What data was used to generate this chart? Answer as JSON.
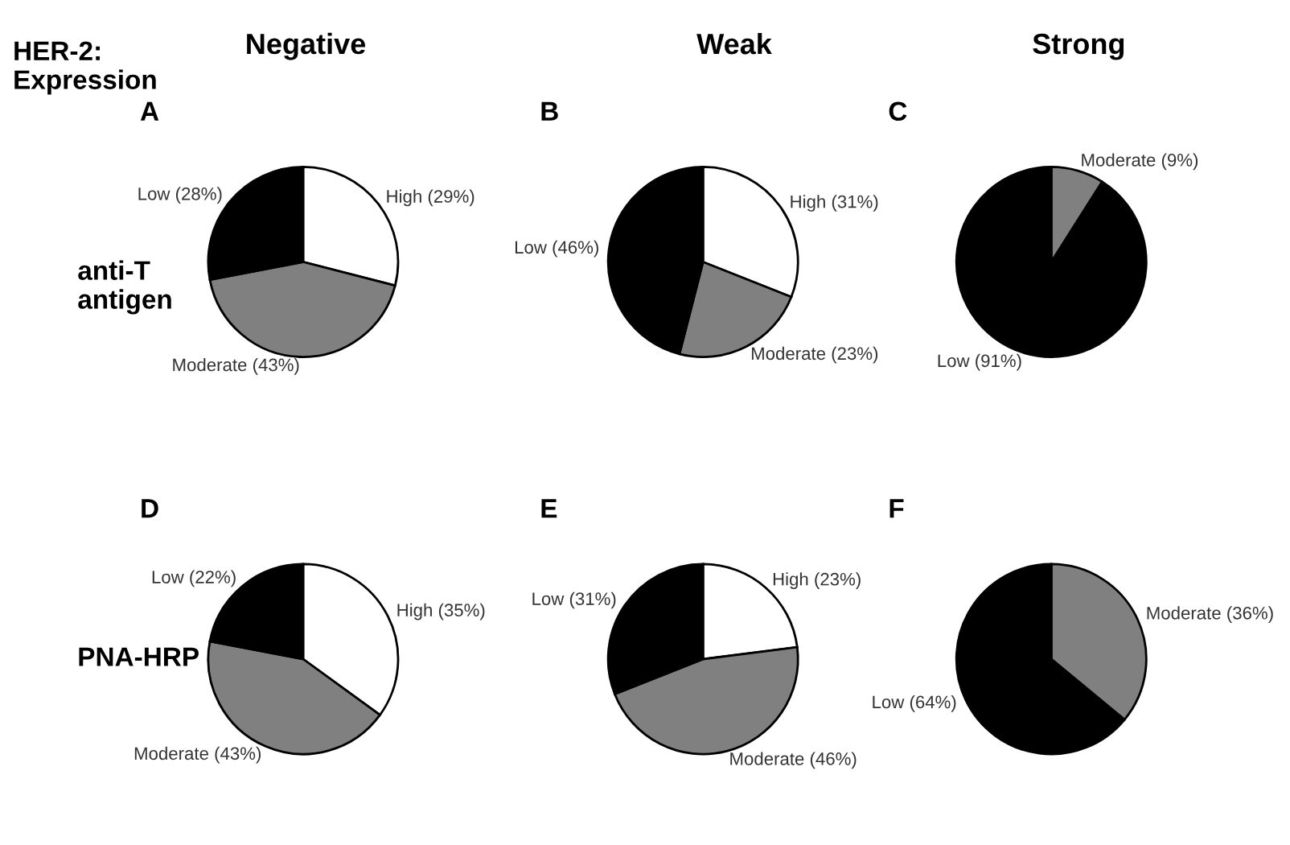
{
  "chart_data": [
    {
      "type": "pie",
      "title": "A",
      "categories": [
        "High (29%)",
        "Moderate (43%)",
        "Low (28%)"
      ],
      "values": [
        29,
        43,
        28
      ],
      "colors": [
        "#ffffff",
        "#808080",
        "#000000"
      ],
      "annotations": [
        "HER-2:\nExpression",
        "Negative",
        "anti-T\nantigen"
      ]
    },
    {
      "type": "pie",
      "title": "B",
      "categories": [
        "High (31%)",
        "Moderate (23%)",
        "Low (46%)"
      ],
      "values": [
        31,
        23,
        46
      ],
      "colors": [
        "#ffffff",
        "#808080",
        "#000000"
      ],
      "annotations": [
        "Weak"
      ]
    },
    {
      "type": "pie",
      "title": "C",
      "categories": [
        "Moderate (9%)",
        "Low (91%)"
      ],
      "values": [
        9,
        91
      ],
      "colors": [
        "#808080",
        "#000000"
      ],
      "annotations": [
        "Strong"
      ]
    },
    {
      "type": "pie",
      "title": "D",
      "categories": [
        "High (35%)",
        "Moderate (43%)",
        "Low (22%)"
      ],
      "values": [
        35,
        43,
        22
      ],
      "colors": [
        "#ffffff",
        "#808080",
        "#000000"
      ],
      "annotations": [
        "PNA-HRP"
      ]
    },
    {
      "type": "pie",
      "title": "E",
      "categories": [
        "High (23%)",
        "Moderate (46%)",
        "Low (31%)"
      ],
      "values": [
        23,
        46,
        31
      ],
      "colors": [
        "#ffffff",
        "#808080",
        "#000000"
      ]
    },
    {
      "type": "pie",
      "title": "F",
      "categories": [
        "Moderate (36%)",
        "Low (64%)"
      ],
      "values": [
        36,
        64
      ],
      "colors": [
        "#808080",
        "#000000"
      ]
    }
  ]
}
